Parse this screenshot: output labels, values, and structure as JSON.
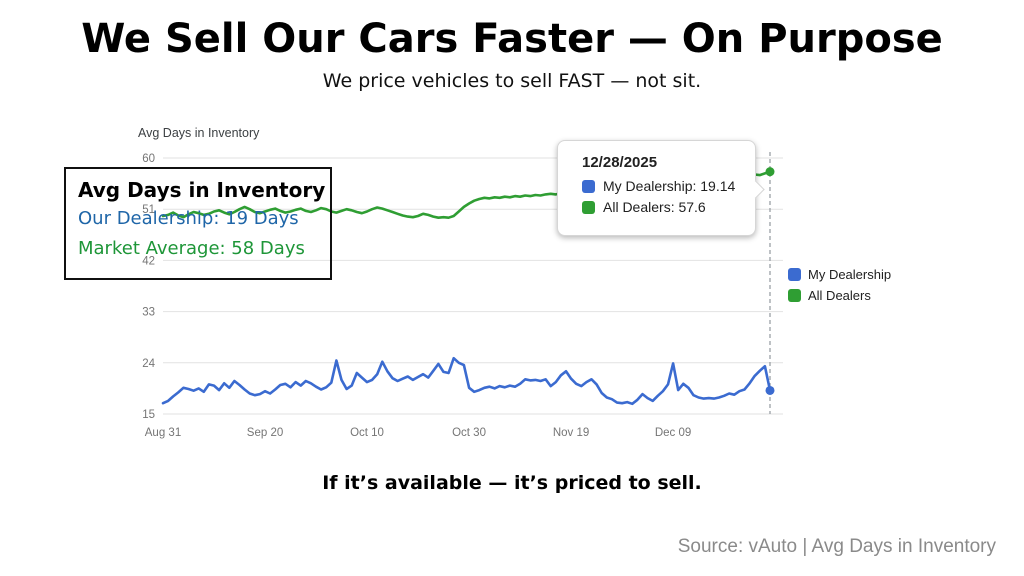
{
  "slide": {
    "title": "We Sell Our Cars Faster — On Purpose",
    "subtitle": "We price vehicles to sell FAST — not sit.",
    "tagline": "If it’s available — it’s priced to sell.",
    "source": "Source: vAuto | Avg Days in Inventory"
  },
  "annotation_box": {
    "title": "Avg Days in Inventory",
    "line1": "Our Dealership: 19 Days",
    "line2": "Market Average: 58 Days",
    "line1_color": "#1f66a8",
    "line2_color": "#1e9638"
  },
  "tooltip": {
    "date": "12/28/2025",
    "rows": [
      {
        "label": "My Dealership: 19.14",
        "color": "#3b6bd0"
      },
      {
        "label": "All Dealers: 57.6",
        "color": "#2f9e33"
      }
    ]
  },
  "chart_data": {
    "type": "line",
    "title": "Avg Days in Inventory",
    "xlabel": "",
    "ylabel": "",
    "ylim": [
      15,
      60
    ],
    "y_ticks": [
      15,
      24,
      33,
      42,
      51,
      60
    ],
    "x_tick_labels": [
      "Aug 31",
      "Sep 20",
      "Oct 10",
      "Oct 30",
      "Nov 19",
      "Dec 09"
    ],
    "x_tick_days": [
      0,
      20,
      40,
      60,
      80,
      100
    ],
    "x_range_days": [
      0,
      119
    ],
    "grid": true,
    "legend_position": "right",
    "crosshair_day": 119,
    "crosshair_date": "12/28/2025",
    "axis_color": "#757575",
    "grid_color": "#e2e2e2",
    "series": [
      {
        "name": "My Dealership",
        "color": "#3b6bd0",
        "end_value": 19.14,
        "values": [
          16.9,
          17.3,
          18.1,
          18.8,
          19.6,
          19.4,
          19.1,
          19.5,
          18.9,
          20.2,
          20.0,
          19.2,
          20.4,
          19.6,
          20.8,
          20.1,
          19.3,
          18.6,
          18.3,
          18.5,
          19.0,
          18.6,
          19.3,
          20.1,
          20.3,
          19.7,
          20.6,
          20.0,
          20.8,
          20.4,
          19.8,
          19.3,
          19.7,
          20.5,
          24.4,
          21.0,
          19.4,
          20.0,
          22.2,
          21.4,
          20.6,
          21.0,
          22.0,
          24.2,
          22.5,
          21.3,
          20.8,
          21.2,
          21.6,
          21.0,
          21.5,
          22.0,
          21.4,
          22.6,
          23.8,
          22.4,
          22.2,
          24.8,
          24.0,
          23.6,
          19.6,
          18.9,
          19.2,
          19.6,
          19.8,
          19.5,
          19.9,
          19.7,
          20.0,
          19.8,
          20.3,
          21.1,
          20.9,
          21.0,
          20.8,
          21.1,
          19.9,
          20.6,
          21.8,
          22.5,
          21.2,
          20.3,
          19.9,
          20.6,
          21.1,
          20.2,
          18.7,
          17.9,
          17.6,
          17.0,
          16.9,
          17.1,
          16.8,
          17.5,
          18.5,
          17.8,
          17.3,
          18.2,
          19.0,
          20.2,
          23.9,
          19.2,
          20.3,
          19.6,
          18.3,
          17.9,
          17.7,
          17.8,
          17.7,
          17.9,
          18.2,
          18.6,
          18.4,
          19.0,
          19.3,
          20.4,
          21.7,
          22.6,
          23.4,
          19.14
        ]
      },
      {
        "name": "All Dealers",
        "color": "#2f9e33",
        "end_value": 57.6,
        "values": [
          49.8,
          50.0,
          50.4,
          49.9,
          49.6,
          50.1,
          50.5,
          50.3,
          50.0,
          50.2,
          50.6,
          50.8,
          50.4,
          50.1,
          50.5,
          51.0,
          51.4,
          51.0,
          50.5,
          50.3,
          50.6,
          50.9,
          51.1,
          50.7,
          50.4,
          50.6,
          50.9,
          51.1,
          50.7,
          50.5,
          50.8,
          51.2,
          51.0,
          50.6,
          50.4,
          50.7,
          51.0,
          50.8,
          50.5,
          50.3,
          50.6,
          51.0,
          51.3,
          51.1,
          50.8,
          50.5,
          50.2,
          49.9,
          49.7,
          49.6,
          49.8,
          50.2,
          50.0,
          49.7,
          49.5,
          49.6,
          49.5,
          49.8,
          50.6,
          51.4,
          52.0,
          52.5,
          52.8,
          53.0,
          52.9,
          53.1,
          53.0,
          53.2,
          53.1,
          53.3,
          53.2,
          53.4,
          53.3,
          53.5,
          53.4,
          53.6,
          53.7,
          53.6,
          53.8,
          53.9,
          53.8,
          54.0,
          54.1,
          54.0,
          54.2,
          54.3,
          54.2,
          54.4,
          54.5,
          54.4,
          54.6,
          54.7,
          54.6,
          54.8,
          54.9,
          55.0,
          54.9,
          55.1,
          55.2,
          55.1,
          55.3,
          55.5,
          55.4,
          55.6,
          55.8,
          55.9,
          56.1,
          56.0,
          56.2,
          56.4,
          56.3,
          56.5,
          56.7,
          56.6,
          56.8,
          57.0,
          57.1,
          57.0,
          57.3,
          57.6
        ]
      }
    ]
  }
}
